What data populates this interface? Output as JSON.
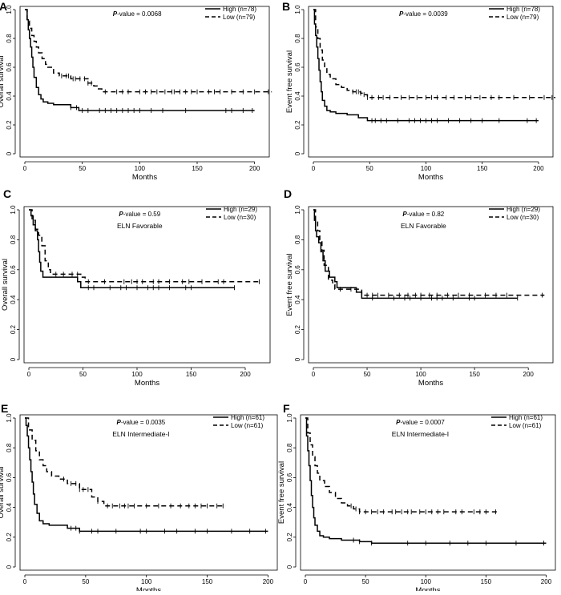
{
  "figure": {
    "panels": [
      {
        "letter": "A",
        "pvalue_prefix": "P",
        "pvalue_text": "-value = 0.0068",
        "subtitle": ""
      },
      {
        "letter": "B",
        "pvalue_prefix": "P",
        "pvalue_text": "-value = 0.0039",
        "subtitle": ""
      },
      {
        "letter": "C",
        "pvalue_prefix": "P",
        "pvalue_text": "-value = 0.59",
        "subtitle": "ELN Favorable"
      },
      {
        "letter": "D",
        "pvalue_prefix": "P",
        "pvalue_text": "-value = 0.82",
        "subtitle": "ELN Favorable"
      },
      {
        "letter": "E",
        "pvalue_prefix": "P",
        "pvalue_text": "-value = 0.0035",
        "subtitle": "ELN Intermediate-I"
      },
      {
        "letter": "F",
        "pvalue_prefix": "P",
        "pvalue_text": "-value = 0.0007",
        "subtitle": "ELN Intermediate-I"
      }
    ]
  },
  "chart_data": [
    {
      "panel": "A",
      "type": "line",
      "ylabel": "Overall survival",
      "xlabel": "Months",
      "xlim": [
        0,
        210
      ],
      "ylim": [
        0,
        1
      ],
      "xticks": [
        0,
        50,
        100,
        150,
        200
      ],
      "yticks": [
        0,
        0.2,
        0.4,
        0.6,
        0.8,
        1.0
      ],
      "ytick_labels": [
        "0",
        "0.2",
        "0.4",
        "0.6",
        "0.8",
        "1.0"
      ],
      "pvalue": "0.0068",
      "series": [
        {
          "name": "High (n=78)",
          "style": "solid",
          "x": [
            0,
            2,
            3,
            4,
            5,
            6,
            7,
            8,
            10,
            12,
            14,
            16,
            20,
            25,
            40,
            47,
            200
          ],
          "y": [
            1,
            0.93,
            0.86,
            0.8,
            0.74,
            0.67,
            0.6,
            0.53,
            0.46,
            0.41,
            0.38,
            0.36,
            0.35,
            0.34,
            0.32,
            0.3,
            0.3
          ],
          "censors": [
            40,
            45,
            50,
            55,
            65,
            70,
            75,
            80,
            85,
            90,
            95,
            100,
            110,
            120,
            140,
            175,
            180,
            190,
            198
          ]
        },
        {
          "name": "Low (n=79)",
          "style": "dashed",
          "x": [
            0,
            2,
            4,
            6,
            8,
            10,
            12,
            15,
            18,
            20,
            25,
            30,
            40,
            55,
            60,
            63,
            67,
            215
          ],
          "y": [
            1,
            0.92,
            0.87,
            0.82,
            0.78,
            0.74,
            0.7,
            0.66,
            0.62,
            0.6,
            0.56,
            0.54,
            0.52,
            0.49,
            0.47,
            0.45,
            0.43,
            0.43
          ],
          "censors": [
            32,
            36,
            38,
            42,
            44,
            48,
            52,
            55,
            58,
            70,
            80,
            85,
            90,
            100,
            105,
            110,
            115,
            122,
            128,
            130,
            135,
            140,
            145,
            150,
            160,
            165,
            170,
            180,
            190,
            200,
            212
          ]
        }
      ]
    },
    {
      "panel": "B",
      "type": "line",
      "ylabel": "Event free survival",
      "xlabel": "Months",
      "xlim": [
        0,
        210
      ],
      "ylim": [
        0,
        1
      ],
      "xticks": [
        0,
        50,
        100,
        150,
        200
      ],
      "yticks": [
        0,
        0.2,
        0.4,
        0.6,
        0.8,
        1.0
      ],
      "ytick_labels": [
        "0",
        "0.2",
        "0.4",
        "0.6",
        "0.8",
        "1.0"
      ],
      "pvalue": "0.0039",
      "series": [
        {
          "name": "High (n=78)",
          "style": "solid",
          "x": [
            0,
            1,
            2,
            3,
            4,
            5,
            6,
            7,
            8,
            10,
            12,
            15,
            20,
            30,
            40,
            48,
            200
          ],
          "y": [
            1,
            0.9,
            0.82,
            0.74,
            0.66,
            0.58,
            0.5,
            0.43,
            0.37,
            0.33,
            0.3,
            0.29,
            0.28,
            0.27,
            0.25,
            0.23,
            0.23
          ],
          "censors": [
            52,
            55,
            60,
            65,
            75,
            85,
            90,
            95,
            100,
            105,
            110,
            120,
            130,
            140,
            150,
            165,
            190,
            198
          ]
        },
        {
          "name": "Low (n=79)",
          "style": "dashed",
          "x": [
            0,
            2,
            4,
            6,
            8,
            10,
            12,
            15,
            20,
            25,
            30,
            35,
            42,
            45,
            48,
            215
          ],
          "y": [
            1,
            0.88,
            0.8,
            0.72,
            0.65,
            0.6,
            0.55,
            0.52,
            0.48,
            0.46,
            0.44,
            0.43,
            0.42,
            0.41,
            0.39,
            0.39
          ],
          "censors": [
            35,
            38,
            40,
            42,
            45,
            48,
            52,
            58,
            62,
            68,
            78,
            85,
            92,
            100,
            105,
            110,
            118,
            125,
            135,
            140,
            148,
            158,
            165,
            178,
            192,
            205,
            212
          ]
        }
      ]
    },
    {
      "panel": "C",
      "type": "line",
      "ylabel": "Overall survival",
      "xlabel": "Months",
      "xlim": [
        0,
        220
      ],
      "ylim": [
        0,
        1
      ],
      "xticks": [
        0,
        50,
        100,
        150,
        200
      ],
      "yticks": [
        0,
        0.2,
        0.4,
        0.6,
        0.8,
        1.0
      ],
      "ytick_labels": [
        "0",
        "0.2",
        "0.4",
        "0.6",
        "0.8",
        "1.0"
      ],
      "pvalue": "0.59",
      "subtitle": "ELN Favorable",
      "series": [
        {
          "name": "High (n=29)",
          "style": "solid",
          "x": [
            0,
            2,
            4,
            6,
            8,
            9,
            10,
            11,
            13,
            15,
            45,
            48,
            190
          ],
          "y": [
            1,
            0.96,
            0.9,
            0.86,
            0.8,
            0.72,
            0.65,
            0.59,
            0.55,
            0.55,
            0.52,
            0.48,
            0.48
          ],
          "censors": [
            55,
            60,
            75,
            85,
            90,
            100,
            110,
            115,
            120,
            130,
            145,
            150,
            190
          ]
        },
        {
          "name": "Low (n=30)",
          "style": "dashed",
          "x": [
            0,
            3,
            6,
            9,
            12,
            15,
            18,
            20,
            48,
            52,
            215
          ],
          "y": [
            1,
            0.93,
            0.87,
            0.83,
            0.76,
            0.66,
            0.6,
            0.57,
            0.55,
            0.52,
            0.52
          ],
          "censors": [
            25,
            32,
            40,
            45,
            55,
            70,
            88,
            95,
            100,
            105,
            115,
            120,
            130,
            142,
            148,
            160,
            175,
            180,
            213
          ]
        }
      ]
    },
    {
      "panel": "D",
      "type": "line",
      "ylabel": "Event free survival",
      "xlabel": "Months",
      "xlim": [
        0,
        220
      ],
      "ylim": [
        0,
        1
      ],
      "xticks": [
        0,
        50,
        100,
        150,
        200
      ],
      "yticks": [
        0,
        0.2,
        0.4,
        0.6,
        0.8,
        1.0
      ],
      "ytick_labels": [
        "0",
        "0.2",
        "0.4",
        "0.6",
        "0.8",
        "1.0"
      ],
      "pvalue": "0.82",
      "subtitle": "ELN Favorable",
      "series": [
        {
          "name": "High (n=29)",
          "style": "solid",
          "x": [
            0,
            1,
            2,
            3,
            5,
            7,
            9,
            11,
            15,
            20,
            22,
            40,
            45,
            190
          ],
          "y": [
            1,
            0.93,
            0.86,
            0.82,
            0.78,
            0.72,
            0.66,
            0.59,
            0.55,
            0.52,
            0.48,
            0.45,
            0.41,
            0.41
          ],
          "censors": [
            55,
            75,
            85,
            90,
            100,
            110,
            115,
            120,
            130,
            145,
            150,
            190
          ]
        },
        {
          "name": "Low (n=30)",
          "style": "dashed",
          "x": [
            0,
            2,
            4,
            6,
            8,
            10,
            14,
            18,
            20,
            40,
            45,
            215
          ],
          "y": [
            1,
            0.93,
            0.86,
            0.8,
            0.73,
            0.63,
            0.53,
            0.5,
            0.47,
            0.47,
            0.43,
            0.43
          ],
          "censors": [
            25,
            35,
            50,
            55,
            60,
            70,
            80,
            88,
            95,
            100,
            108,
            115,
            125,
            135,
            145,
            160,
            170,
            180,
            213
          ]
        }
      ]
    },
    {
      "panel": "E",
      "type": "line",
      "ylabel": "Overall survival",
      "xlabel": "Months",
      "xlim": [
        0,
        205
      ],
      "ylim": [
        0,
        1
      ],
      "xticks": [
        0,
        50,
        100,
        150,
        200
      ],
      "yticks": [
        0,
        0.2,
        0.4,
        0.6,
        0.8,
        1.0
      ],
      "ytick_labels": [
        "0",
        "0.2",
        "0.4",
        "0.6",
        "0.8",
        "1.0"
      ],
      "pvalue": "0.0035",
      "subtitle": "ELN Intermediate-I",
      "series": [
        {
          "name": "High (n=61)",
          "style": "solid",
          "x": [
            0,
            1,
            2,
            3,
            4,
            5,
            6,
            7,
            8,
            10,
            12,
            15,
            20,
            35,
            45,
            200
          ],
          "y": [
            1,
            0.95,
            0.88,
            0.8,
            0.72,
            0.64,
            0.57,
            0.49,
            0.42,
            0.36,
            0.31,
            0.29,
            0.28,
            0.26,
            0.24,
            0.24
          ],
          "censors": [
            38,
            42,
            45,
            55,
            60,
            75,
            95,
            100,
            115,
            125,
            140,
            150,
            170,
            185,
            198
          ]
        },
        {
          "name": "Low (n=61)",
          "style": "dashed",
          "x": [
            0,
            3,
            6,
            9,
            12,
            15,
            18,
            22,
            28,
            35,
            45,
            55,
            60,
            65,
            165
          ],
          "y": [
            1,
            0.92,
            0.85,
            0.78,
            0.72,
            0.68,
            0.64,
            0.61,
            0.59,
            0.56,
            0.52,
            0.47,
            0.44,
            0.41,
            0.41
          ],
          "censors": [
            32,
            38,
            42,
            45,
            48,
            52,
            60,
            68,
            72,
            78,
            82,
            85,
            90,
            100,
            110,
            120,
            128,
            135,
            140,
            145,
            150,
            158,
            163
          ]
        }
      ]
    },
    {
      "panel": "F",
      "type": "line",
      "ylabel": "Event free survival",
      "xlabel": "Months",
      "xlim": [
        0,
        205
      ],
      "ylim": [
        0,
        1
      ],
      "xticks": [
        0,
        50,
        100,
        150,
        200
      ],
      "yticks": [
        0,
        0.2,
        0.4,
        0.6,
        0.8,
        1.0
      ],
      "ytick_labels": [
        "0",
        "0.2",
        "0.4",
        "0.6",
        "0.8",
        "1.0"
      ],
      "pvalue": "0.0007",
      "subtitle": "ELN Intermediate-I",
      "series": [
        {
          "name": "High (n=61)",
          "style": "solid",
          "x": [
            0,
            1,
            2,
            3,
            4,
            5,
            6,
            7,
            8,
            10,
            12,
            15,
            20,
            30,
            45,
            55,
            200
          ],
          "y": [
            1,
            0.88,
            0.78,
            0.68,
            0.58,
            0.48,
            0.4,
            0.33,
            0.28,
            0.24,
            0.21,
            0.2,
            0.19,
            0.18,
            0.17,
            0.16,
            0.16
          ],
          "censors": [
            40,
            45,
            55,
            85,
            100,
            120,
            135,
            150,
            175,
            198
          ]
        },
        {
          "name": "Low (n=61)",
          "style": "dashed",
          "x": [
            0,
            2,
            4,
            6,
            8,
            10,
            12,
            16,
            20,
            25,
            30,
            35,
            40,
            45,
            160
          ],
          "y": [
            1,
            0.9,
            0.82,
            0.74,
            0.68,
            0.63,
            0.58,
            0.54,
            0.5,
            0.46,
            0.43,
            0.41,
            0.39,
            0.37,
            0.37
          ],
          "censors": [
            38,
            42,
            45,
            50,
            55,
            60,
            65,
            72,
            75,
            80,
            85,
            88,
            95,
            100,
            105,
            110,
            115,
            125,
            130,
            140,
            145,
            150,
            158
          ]
        }
      ]
    }
  ]
}
